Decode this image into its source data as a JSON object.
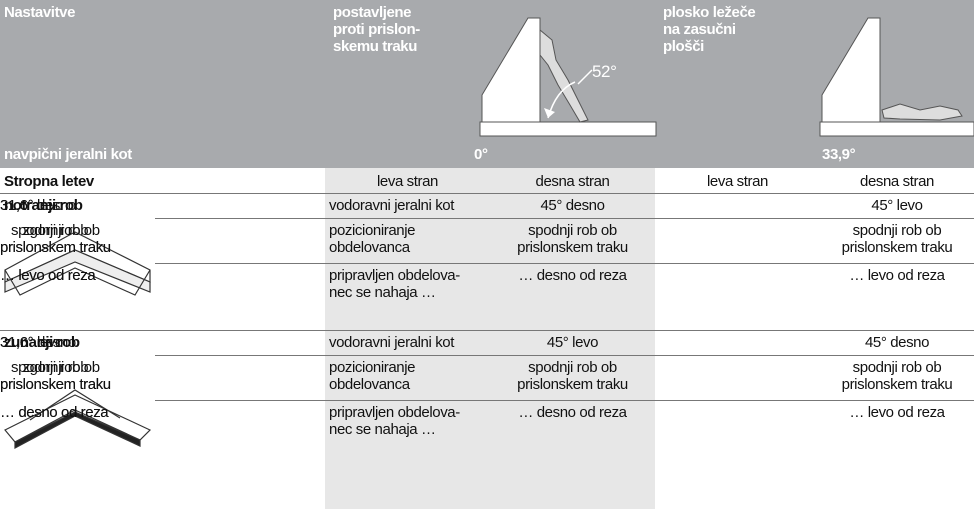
{
  "header": {
    "title": "Nastavitve",
    "mount_fence": "postavljene\nproti prislon-\nskemu traku",
    "mount_flat": "plosko ležeče\nna zasučni\nplošči",
    "angle_note": "52°",
    "vertical_label": "navpični jeralni kot",
    "vertical_fence": "0°",
    "vertical_flat": "33,9°"
  },
  "table": {
    "head": [
      "Stropna letev",
      "leva stran",
      "desna stran",
      "leva stran",
      "desna stran"
    ],
    "sections": [
      {
        "name": "notranji rob",
        "rows": [
          [
            "vodoravni jeralni kot",
            "45° desno",
            "45° levo",
            "31,6° desno",
            "31,6° levo"
          ],
          [
            "pozicioniranje\nobdelovanca",
            "spodnji rob ob\nprislonskem traku",
            "spodnji rob ob\nprislonskem traku",
            "zgornji rob\nprislonskem traku",
            "spodnji rob ob\nprislonskem traku"
          ],
          [
            "pripravljen obdelova-\nnec se nahaja …",
            "… desno od reza",
            "… levo od reza",
            "… levo od reza",
            "… levo od reza"
          ]
        ]
      },
      {
        "name": "zunanji rob",
        "rows": [
          [
            "vodoravni jeralni kot",
            "45° levo",
            "45° desno",
            "31,6° levo",
            "31,6° desno"
          ],
          [
            "pozicioniranje\nobdelovanca",
            "spodnji rob ob\nprislonskem traku",
            "spodnji rob ob\nprislonskem traku",
            "spodnji rob ob\nprislonskem traku",
            "zgornji rob\nprislonskem traku"
          ],
          [
            "pripravljen obdelova-\nnec se nahaja …",
            "… desno od reza",
            "… levo od reza",
            "… desno od reza",
            "… desno od reza"
          ]
        ]
      }
    ]
  }
}
